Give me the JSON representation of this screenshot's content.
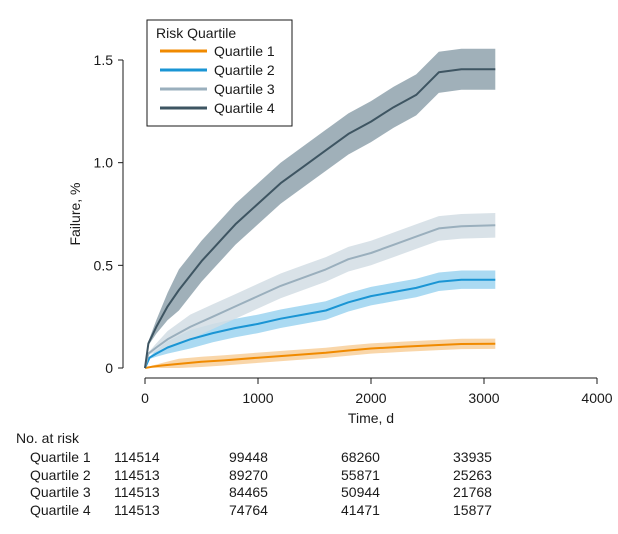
{
  "chart_data": {
    "type": "line",
    "xlabel": "Time, d",
    "ylabel": "Failure, %",
    "xlim": [
      0,
      4000
    ],
    "ylim": [
      0,
      1.5
    ],
    "x_ticks": [
      "0",
      "1000",
      "2000",
      "3000",
      "4000"
    ],
    "y_ticks": [
      "0",
      "0.5",
      "1.0",
      "1.5"
    ],
    "grid": false,
    "legend": {
      "title": "Risk Quartile",
      "position": "top-left"
    },
    "series": [
      {
        "name": "Quartile 1",
        "color": "#f08a00",
        "band_color": "#f8cf9a",
        "band_halfwidth": 0.025,
        "points": [
          [
            0,
            0
          ],
          [
            60,
            0.006
          ],
          [
            150,
            0.012
          ],
          [
            300,
            0.02
          ],
          [
            500,
            0.03
          ],
          [
            700,
            0.037
          ],
          [
            1000,
            0.05
          ],
          [
            1300,
            0.062
          ],
          [
            1600,
            0.074
          ],
          [
            1800,
            0.085
          ],
          [
            2000,
            0.095
          ],
          [
            2300,
            0.104
          ],
          [
            2600,
            0.112
          ],
          [
            2800,
            0.117
          ],
          [
            3100,
            0.118
          ]
        ]
      },
      {
        "name": "Quartile 2",
        "color": "#1a95d4",
        "band_color": "#9cd4f0",
        "band_halfwidth": 0.045,
        "points": [
          [
            0,
            0
          ],
          [
            40,
            0.05
          ],
          [
            100,
            0.07
          ],
          [
            200,
            0.1
          ],
          [
            400,
            0.14
          ],
          [
            600,
            0.17
          ],
          [
            800,
            0.195
          ],
          [
            1000,
            0.215
          ],
          [
            1200,
            0.24
          ],
          [
            1400,
            0.26
          ],
          [
            1600,
            0.28
          ],
          [
            1800,
            0.32
          ],
          [
            2000,
            0.35
          ],
          [
            2200,
            0.37
          ],
          [
            2400,
            0.39
          ],
          [
            2600,
            0.42
          ],
          [
            2800,
            0.43
          ],
          [
            3100,
            0.43
          ]
        ]
      },
      {
        "name": "Quartile 3",
        "color": "#9aafbd",
        "band_color": "#d2dde4",
        "band_halfwidth": 0.06,
        "points": [
          [
            0,
            0
          ],
          [
            30,
            0.07
          ],
          [
            100,
            0.1
          ],
          [
            200,
            0.14
          ],
          [
            400,
            0.2
          ],
          [
            600,
            0.25
          ],
          [
            800,
            0.3
          ],
          [
            1000,
            0.35
          ],
          [
            1200,
            0.4
          ],
          [
            1400,
            0.44
          ],
          [
            1600,
            0.48
          ],
          [
            1800,
            0.53
          ],
          [
            2000,
            0.56
          ],
          [
            2200,
            0.6
          ],
          [
            2400,
            0.64
          ],
          [
            2600,
            0.68
          ],
          [
            2800,
            0.69
          ],
          [
            3100,
            0.695
          ]
        ]
      },
      {
        "name": "Quartile 4",
        "color": "#3e5562",
        "band_color": "#8fa2ad",
        "band_halfwidth": 0.1,
        "points": [
          [
            0,
            0
          ],
          [
            30,
            0.12
          ],
          [
            100,
            0.2
          ],
          [
            200,
            0.3
          ],
          [
            300,
            0.38
          ],
          [
            400,
            0.45
          ],
          [
            500,
            0.52
          ],
          [
            600,
            0.58
          ],
          [
            700,
            0.64
          ],
          [
            800,
            0.7
          ],
          [
            900,
            0.75
          ],
          [
            1000,
            0.8
          ],
          [
            1200,
            0.9
          ],
          [
            1400,
            0.98
          ],
          [
            1600,
            1.06
          ],
          [
            1800,
            1.14
          ],
          [
            2000,
            1.2
          ],
          [
            2200,
            1.27
          ],
          [
            2400,
            1.33
          ],
          [
            2600,
            1.44
          ],
          [
            2800,
            1.455
          ],
          [
            3100,
            1.455
          ]
        ]
      }
    ]
  },
  "risk_table": {
    "title": "No. at risk",
    "columns": [
      "0",
      "1000",
      "2000",
      "3000"
    ],
    "rows": [
      {
        "label": "Quartile 1",
        "values": [
          "114514",
          "99448",
          "68260",
          "33935"
        ]
      },
      {
        "label": "Quartile 2",
        "values": [
          "114513",
          "89270",
          "55871",
          "25263"
        ]
      },
      {
        "label": "Quartile 3",
        "values": [
          "114513",
          "84465",
          "50944",
          "21768"
        ]
      },
      {
        "label": "Quartile 4",
        "values": [
          "114513",
          "74764",
          "41471",
          "15877"
        ]
      }
    ]
  }
}
